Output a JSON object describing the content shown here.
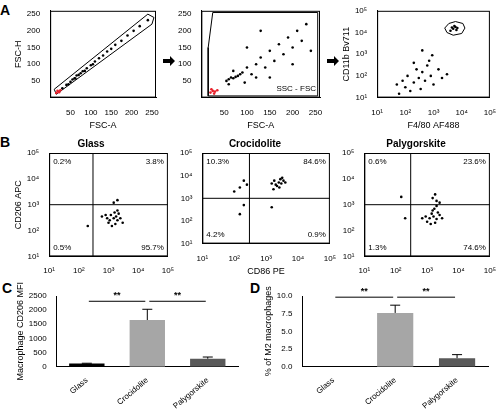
{
  "chart_data": [
    {
      "type": "scatter",
      "panel": "A",
      "xlabel": "FSC-A",
      "ylabel": "FSC-H",
      "grid": false,
      "xlim": [
        0,
        260
      ],
      "ylim": [
        0,
        260
      ],
      "xticks": [
        50,
        100,
        150,
        200,
        250
      ],
      "yticks": [
        50,
        100,
        150,
        200,
        250
      ],
      "series": [
        {
          "color": "#000000",
          "x": [
            30,
            40,
            50,
            55,
            60,
            65,
            70,
            75,
            80,
            90,
            100,
            110,
            120,
            130,
            140,
            150,
            160,
            175,
            190,
            205,
            220,
            240,
            45,
            62,
            85,
            105
          ],
          "values": [
            28,
            38,
            47,
            54,
            58,
            66,
            68,
            73,
            79,
            88,
            97,
            108,
            118,
            126,
            138,
            146,
            158,
            170,
            186,
            200,
            214,
            232,
            40,
            57,
            80,
            100
          ]
        },
        {
          "color": "#e8202a",
          "x": [
            15,
            20,
            25,
            18,
            22
          ],
          "values": [
            14,
            18,
            22,
            20,
            16
          ]
        },
        {
          "type": "line",
          "color": "#000000",
          "x": [
            15,
            250,
            255,
            240,
            10,
            15
          ],
          "values": [
            10,
            220,
            240,
            250,
            25,
            10
          ]
        }
      ]
    },
    {
      "type": "scatter",
      "xlabel": "FSC-A",
      "grid": false,
      "annotations": [
        "SSC - FSC"
      ],
      "xlim": [
        0,
        260
      ],
      "ylim": [
        0,
        260
      ],
      "xticks": [
        50,
        100,
        150,
        200,
        250
      ],
      "yticks": [
        50,
        100,
        150,
        200,
        250
      ],
      "series": [
        {
          "color": "#000000",
          "x": [
            60,
            65,
            70,
            75,
            80,
            55,
            85,
            90,
            70,
            100,
            110,
            120,
            130,
            140,
            150,
            160,
            170,
            180,
            190,
            200,
            210,
            220,
            230,
            120,
            95,
            60,
            150,
            200,
            240,
            130,
            100
          ],
          "values": [
            55,
            60,
            58,
            62,
            65,
            50,
            70,
            75,
            80,
            90,
            70,
            100,
            120,
            90,
            140,
            110,
            160,
            130,
            180,
            150,
            200,
            170,
            220,
            60,
            45,
            40,
            60,
            100,
            140,
            200,
            150
          ]
        },
        {
          "color": "#e8202a",
          "x": [
            20,
            25,
            30,
            22,
            35,
            28
          ],
          "values": [
            15,
            20,
            18,
            25,
            22,
            12
          ]
        },
        {
          "type": "line",
          "color": "#000000",
          "x": [
            15,
            255,
            255,
            25,
            15,
            15
          ],
          "values": [
            5,
            5,
            255,
            255,
            150,
            5
          ]
        }
      ]
    },
    {
      "type": "scatter",
      "xlabel": "F4/80 AF488",
      "ylabel": "CD11b Bv711",
      "grid": false,
      "log": true,
      "xlim": [
        10,
        100000
      ],
      "ylim": [
        10,
        100000
      ],
      "xticks": [
        {
          "value": 10,
          "label": "10¹"
        },
        {
          "value": 100,
          "label": "10²"
        },
        {
          "value": 1000,
          "label": "10³"
        },
        {
          "value": 10000,
          "label": "10⁴"
        },
        {
          "value": 100000,
          "label": "10⁵"
        }
      ],
      "yticks": [
        {
          "value": 10,
          "label": "10¹"
        },
        {
          "value": 100,
          "label": "10²"
        },
        {
          "value": 1000,
          "label": "10³"
        },
        {
          "value": 10000,
          "label": "10⁴"
        },
        {
          "value": 100000,
          "label": "10⁵"
        }
      ],
      "series": [
        {
          "color": "#000000",
          "x": [
            5000,
            6000,
            4000,
            7000,
            5500,
            4500,
            6500,
            100,
            200,
            300,
            500,
            800,
            150,
            400,
            1000,
            250,
            600,
            80,
            120,
            2000,
            350,
            700,
            60,
            1500,
            3000,
            50,
            200,
            900,
            400
          ],
          "values": [
            15000,
            18000,
            12000,
            16000,
            20000,
            17000,
            13000,
            30,
            50,
            80,
            60,
            100,
            20,
            150,
            40,
            200,
            300,
            60,
            100,
            80,
            25,
            500,
            15,
            200,
            120,
            40,
            400,
            900,
            1500
          ]
        },
        {
          "type": "line",
          "color": "#000000",
          "x": [
            2500,
            3500,
            6000,
            11000,
            13000,
            10000,
            5000,
            3000,
            2500
          ],
          "values": [
            16000,
            26000,
            32000,
            26000,
            16000,
            9000,
            7500,
            10000,
            16000
          ]
        }
      ]
    },
    {
      "type": "scatter",
      "panel": "B",
      "title": "Glass",
      "ylabel": "CD206 APC",
      "grid": false,
      "log": true,
      "quadrant_labels": [
        "0.2%",
        "3.8%",
        "0.5%",
        "95.7%"
      ],
      "xlim": [
        10,
        100000
      ],
      "ylim": [
        10,
        100000
      ],
      "xticks": [
        {
          "value": 10,
          "label": "10¹"
        },
        {
          "value": 100,
          "label": "10²"
        },
        {
          "value": 1000,
          "label": "10³"
        },
        {
          "value": 10000,
          "label": "10⁴"
        },
        {
          "value": 100000,
          "label": "10⁵"
        }
      ],
      "yticks": [
        {
          "value": 10,
          "label": "10¹"
        },
        {
          "value": 100,
          "label": "10²"
        },
        {
          "value": 1000,
          "label": "10³"
        },
        {
          "value": 10000,
          "label": "10⁴"
        },
        {
          "value": 100000,
          "label": "10⁵"
        }
      ],
      "series": [
        {
          "color": "#000000",
          "x": [
            1000,
            1500,
            2000,
            1200,
            1800,
            2500,
            1300,
            900,
            2200,
            1600,
            3000,
            1100,
            1700,
            2000,
            800,
            600,
            200,
            2000,
            1500
          ],
          "values": [
            200,
            300,
            250,
            400,
            350,
            300,
            150,
            300,
            450,
            500,
            200,
            250,
            180,
            600,
            400,
            350,
            150,
            1500,
            1200
          ]
        },
        {
          "type": "line",
          "color": "#000000",
          "x": [
            300,
            300
          ],
          "values": [
            10,
            100000
          ]
        },
        {
          "type": "line",
          "color": "#000000",
          "x": [
            10,
            100000
          ],
          "values": [
            1000,
            1000
          ]
        }
      ]
    },
    {
      "type": "scatter",
      "title": "Crocidolite",
      "xlabel": "CD86 PE",
      "grid": false,
      "log": true,
      "quadrant_labels": [
        "10.3%",
        "84.6%",
        "4.2%",
        "0.9%"
      ],
      "xlim": [
        10,
        100000
      ],
      "ylim": [
        10,
        100000
      ],
      "xticks": [
        {
          "value": 10,
          "label": "10¹"
        },
        {
          "value": 100,
          "label": "10²"
        },
        {
          "value": 1000,
          "label": "10³"
        },
        {
          "value": 10000,
          "label": "10⁴"
        },
        {
          "value": 100000,
          "label": "10⁵"
        }
      ],
      "yticks": [
        {
          "value": 10,
          "label": "10¹"
        },
        {
          "value": 100,
          "label": "10²"
        },
        {
          "value": 1000,
          "label": "10³"
        },
        {
          "value": 10000,
          "label": "10⁴"
        },
        {
          "value": 100000,
          "label": "10⁵"
        }
      ],
      "series": [
        {
          "color": "#000000",
          "x": [
            2000,
            2500,
            3000,
            1800,
            2200,
            3500,
            2800,
            1500,
            4000,
            2600,
            3200,
            1700,
            150,
            200,
            100,
            250,
            150,
            200,
            1500
          ],
          "values": [
            4000,
            5000,
            4500,
            6000,
            3500,
            6000,
            7000,
            4500,
            5000,
            3000,
            8000,
            2500,
            3000,
            6000,
            2000,
            4000,
            200,
            500,
            400
          ]
        },
        {
          "type": "line",
          "color": "#000000",
          "x": [
            300,
            300
          ],
          "values": [
            10,
            100000
          ]
        },
        {
          "type": "line",
          "color": "#000000",
          "x": [
            10,
            100000
          ],
          "values": [
            1000,
            1000
          ]
        }
      ]
    },
    {
      "type": "scatter",
      "title": "Palygorskite",
      "grid": false,
      "log": true,
      "quadrant_labels": [
        "0.6%",
        "23.6%",
        "1.3%",
        "74.6%"
      ],
      "xlim": [
        10,
        100000
      ],
      "ylim": [
        10,
        100000
      ],
      "xticks": [
        {
          "value": 10,
          "label": "10¹"
        },
        {
          "value": 100,
          "label": "10²"
        },
        {
          "value": 1000,
          "label": "10³"
        },
        {
          "value": 10000,
          "label": "10⁴"
        },
        {
          "value": 100000,
          "label": "10⁵"
        }
      ],
      "yticks": [
        {
          "value": 10,
          "label": "10¹"
        },
        {
          "value": 100,
          "label": "10²"
        },
        {
          "value": 1000,
          "label": "10³"
        },
        {
          "value": 10000,
          "label": "10⁴"
        },
        {
          "value": 100000,
          "label": "10⁵"
        }
      ],
      "series": [
        {
          "color": "#000000",
          "x": [
            1200,
            1600,
            2000,
            1400,
            1800,
            2500,
            1000,
            900,
            2200,
            1500,
            3000,
            1300,
            1700,
            2000,
            700,
            2000,
            1500,
            2500,
            1800,
            200,
            150
          ],
          "values": [
            300,
            350,
            280,
            450,
            200,
            400,
            220,
            350,
            500,
            600,
            300,
            180,
            700,
            900,
            300,
            1400,
            1800,
            1200,
            2500,
            300,
            2000
          ]
        },
        {
          "type": "line",
          "color": "#000000",
          "x": [
            300,
            300
          ],
          "values": [
            10,
            100000
          ]
        },
        {
          "type": "line",
          "color": "#000000",
          "x": [
            10,
            100000
          ],
          "values": [
            1000,
            1000
          ]
        }
      ]
    },
    {
      "type": "bar",
      "panel": "C",
      "ylabel": "Macrophage CD206 MFI",
      "grid": false,
      "categories": [
        "Glass",
        "Crocidolite",
        "Palygorskite"
      ],
      "values": [
        110,
        1650,
        280
      ],
      "errors": [
        10,
        380,
        60
      ],
      "colors": [
        "#000000",
        "#a6a6a6",
        "#595959"
      ],
      "ylim": [
        0,
        2500
      ],
      "yticks": [
        0,
        500,
        1000,
        1500,
        2000,
        2500
      ],
      "significance": [
        {
          "from": "Glass",
          "to": "Crocidolite",
          "label": "**"
        },
        {
          "from": "Crocidolite",
          "to": "Palygorskite",
          "label": "**"
        }
      ]
    },
    {
      "type": "bar",
      "panel": "D",
      "ylabel": "% of M2 macrophages",
      "grid": false,
      "categories": [
        "Glass",
        "Crocidolite",
        "Palygorskite"
      ],
      "values": [
        0,
        7.6,
        1.2
      ],
      "errors": [
        0,
        1.1,
        0.5
      ],
      "colors": [
        "#000000",
        "#a6a6a6",
        "#595959"
      ],
      "ylim": [
        0,
        10
      ],
      "yticks": [
        {
          "value": 0,
          "label": "0.0"
        },
        2.5,
        {
          "value": 5,
          "label": "5.0"
        },
        7.5,
        {
          "value": 10,
          "label": "10.0"
        }
      ],
      "significance": [
        {
          "from": "Glass",
          "to": "Crocidolite",
          "label": "**"
        },
        {
          "from": "Crocidolite",
          "to": "Palygorskite",
          "label": "**"
        }
      ]
    }
  ]
}
